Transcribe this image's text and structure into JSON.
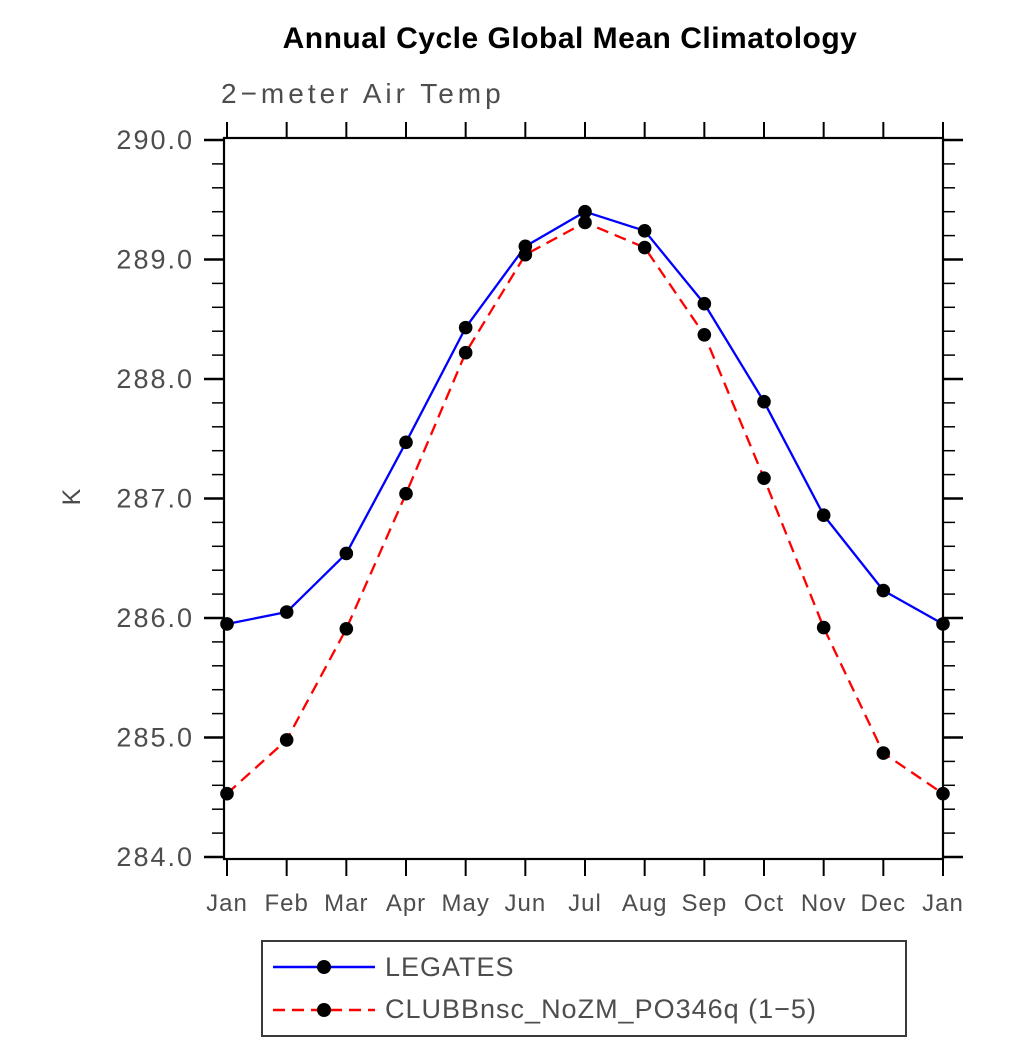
{
  "chart": {
    "title": "Annual Cycle Global Mean Climatology",
    "subtitle": "2−meter Air Temp",
    "ylabel": "K"
  },
  "chart_data": {
    "type": "line",
    "title": "Annual Cycle Global Mean Climatology",
    "subtitle": "2−meter Air Temp",
    "xlabel": "",
    "ylabel": "K",
    "categories": [
      "Jan",
      "Feb",
      "Mar",
      "Apr",
      "May",
      "Jun",
      "Jul",
      "Aug",
      "Sep",
      "Oct",
      "Nov",
      "Dec",
      "Jan"
    ],
    "series": [
      {
        "name": "LEGATES",
        "color": "#0000ff",
        "line_style": "solid",
        "marker": "circle",
        "marker_color": "#000000",
        "values": [
          285.95,
          286.05,
          286.54,
          287.47,
          288.43,
          289.11,
          289.4,
          289.24,
          288.63,
          287.81,
          286.86,
          286.23,
          285.95
        ]
      },
      {
        "name": "CLUBBnsc_NoZM_PO346q (1−5)",
        "color": "#ff0000",
        "line_style": "dashed",
        "marker": "circle",
        "marker_color": "#000000",
        "values": [
          284.53,
          284.98,
          285.91,
          287.04,
          288.22,
          289.04,
          289.31,
          289.1,
          288.37,
          287.17,
          285.92,
          284.87,
          284.53
        ]
      }
    ],
    "ylim": [
      284.0,
      290.0
    ],
    "ytick_labels": [
      "284.0",
      "285.0",
      "286.0",
      "287.0",
      "288.0",
      "289.0",
      "290.0"
    ],
    "ytick_minor_step": 0.2,
    "grid": false,
    "legend_position": "bottom",
    "axis_color": "#000000",
    "text_color": "#4d4d4d"
  }
}
